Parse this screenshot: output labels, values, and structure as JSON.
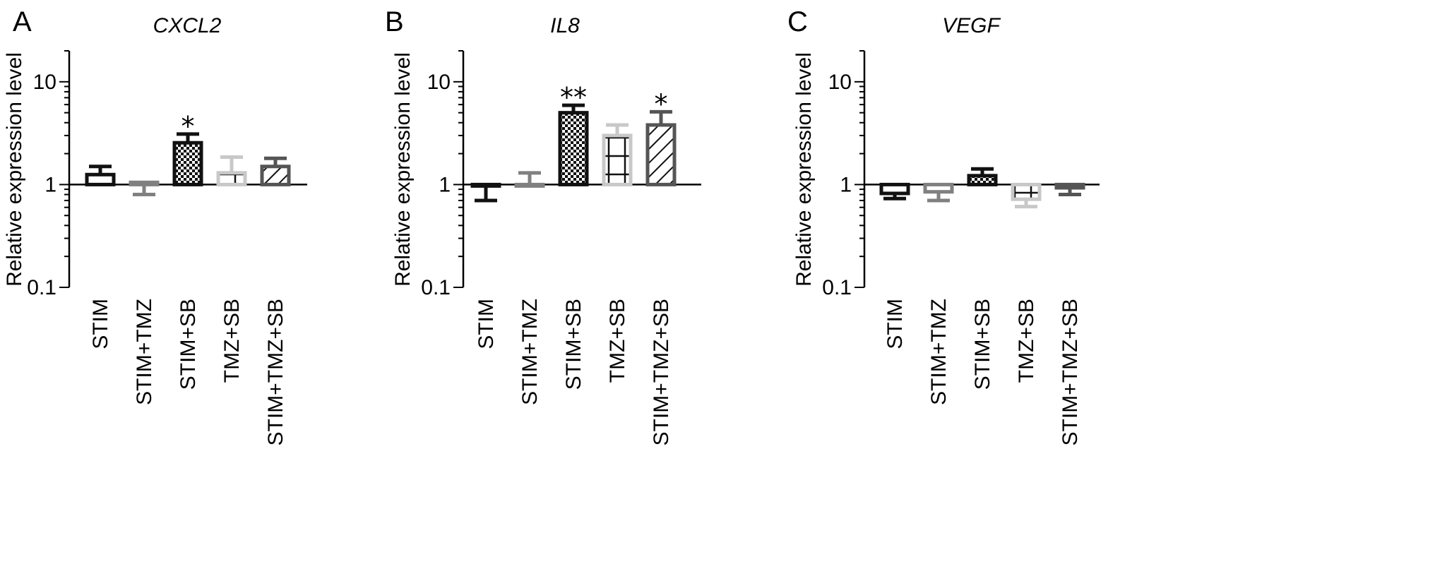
{
  "chart_data": [
    {
      "type": "bar",
      "panel_letter": "A",
      "title": "CXCL2",
      "ylabel": "Relative expression level",
      "xlabel": "",
      "y_scale": "log",
      "ylim": [
        0.1,
        20
      ],
      "y_ticks": [
        0.1,
        1,
        10
      ],
      "y_tick_labels": [
        "0.1",
        "1",
        "10"
      ],
      "baseline": 1,
      "categories": [
        "STIM",
        "STIM+TMZ",
        "STIM+SB",
        "TMZ+SB",
        "STIM+TMZ+SB"
      ],
      "values": [
        1.25,
        1.05,
        2.55,
        1.3,
        1.5
      ],
      "error_bar_ends": [
        1.5,
        0.8,
        3.1,
        1.85,
        1.8
      ],
      "significance": [
        "",
        "",
        "*",
        "",
        ""
      ],
      "bar_colors": [
        "#111111",
        "#808080",
        "#111111",
        "#c8c8c8",
        "#555555"
      ],
      "bar_patterns": [
        "none",
        "none",
        "checker",
        "grid",
        "diagonal"
      ]
    },
    {
      "type": "bar",
      "panel_letter": "B",
      "title": "IL8",
      "ylabel": "Relative expression level",
      "xlabel": "",
      "y_scale": "log",
      "ylim": [
        0.1,
        20
      ],
      "y_ticks": [
        0.1,
        1,
        10
      ],
      "y_tick_labels": [
        "0.1",
        "1",
        "10"
      ],
      "baseline": 1,
      "categories": [
        "STIM",
        "STIM+TMZ",
        "STIM+SB",
        "TMZ+SB",
        "STIM+TMZ+SB"
      ],
      "values": [
        0.97,
        1.0,
        5.0,
        3.0,
        3.8
      ],
      "error_bar_ends": [
        0.7,
        1.3,
        5.9,
        3.8,
        5.1
      ],
      "significance": [
        "",
        "",
        "**",
        "",
        "*"
      ],
      "bar_colors": [
        "#111111",
        "#808080",
        "#111111",
        "#c8c8c8",
        "#555555"
      ],
      "bar_patterns": [
        "none",
        "none",
        "checker",
        "grid",
        "diagonal"
      ]
    },
    {
      "type": "bar",
      "panel_letter": "C",
      "title": "VEGF",
      "ylabel": "Relative expression level",
      "xlabel": "",
      "y_scale": "log",
      "ylim": [
        0.1,
        20
      ],
      "y_ticks": [
        0.1,
        1,
        10
      ],
      "y_tick_labels": [
        "0.1",
        "1",
        "10"
      ],
      "baseline": 1,
      "categories": [
        "STIM",
        "STIM+TMZ",
        "STIM+SB",
        "TMZ+SB",
        "STIM+TMZ+SB"
      ],
      "values": [
        0.82,
        0.85,
        1.22,
        0.72,
        0.93
      ],
      "error_bar_ends": [
        0.73,
        0.7,
        1.42,
        0.61,
        0.8
      ],
      "significance": [
        "",
        "",
        "",
        "",
        ""
      ],
      "bar_colors": [
        "#111111",
        "#808080",
        "#111111",
        "#c8c8c8",
        "#555555"
      ],
      "bar_patterns": [
        "none",
        "none",
        "checker",
        "grid",
        "diagonal"
      ]
    }
  ]
}
